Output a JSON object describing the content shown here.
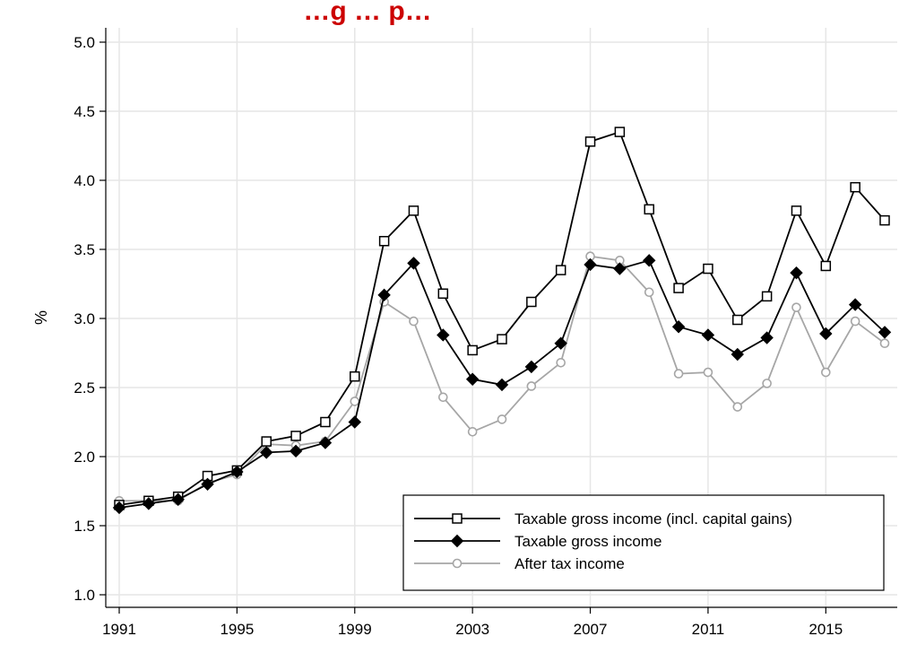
{
  "chart_data": {
    "type": "line",
    "title": "…g … p…",
    "xlabel": "",
    "ylabel": "%",
    "xlim": [
      1991,
      2017
    ],
    "ylim": [
      1.0,
      5.0
    ],
    "x_ticks": [
      1991,
      1995,
      1999,
      2003,
      2007,
      2011,
      2015
    ],
    "y_ticks": [
      "1.0",
      "1.5",
      "2.0",
      "2.5",
      "3.0",
      "3.5",
      "4.0",
      "4.5",
      "5.0"
    ],
    "grid": true,
    "legend_position": "bottom-right",
    "x": [
      1991,
      1992,
      1993,
      1994,
      1995,
      1996,
      1997,
      1998,
      1999,
      2000,
      2001,
      2002,
      2003,
      2004,
      2005,
      2006,
      2007,
      2008,
      2009,
      2010,
      2011,
      2012,
      2013,
      2014,
      2015,
      2016,
      2017
    ],
    "series": [
      {
        "name": "Taxable gross income (incl. capital gains)",
        "marker": "open-square",
        "color": "#000000",
        "values": [
          1.65,
          1.68,
          1.71,
          1.86,
          1.9,
          2.11,
          2.15,
          2.25,
          2.58,
          3.56,
          3.78,
          3.18,
          2.77,
          2.85,
          3.12,
          3.35,
          4.28,
          4.35,
          3.79,
          3.22,
          3.36,
          2.99,
          3.16,
          3.78,
          3.38,
          3.95,
          3.71
        ]
      },
      {
        "name": "Taxable gross income",
        "marker": "filled-diamond",
        "color": "#000000",
        "values": [
          1.63,
          1.66,
          1.69,
          1.8,
          1.89,
          2.03,
          2.04,
          2.1,
          2.25,
          3.17,
          3.4,
          2.88,
          2.56,
          2.52,
          2.65,
          2.82,
          3.39,
          3.36,
          3.42,
          2.94,
          2.88,
          2.74,
          2.86,
          3.33,
          2.89,
          3.1,
          2.9
        ]
      },
      {
        "name": "After tax income",
        "marker": "open-circle",
        "color": "#a6a6a6",
        "values": [
          1.68,
          1.68,
          1.68,
          1.81,
          1.87,
          2.09,
          2.08,
          2.11,
          2.4,
          3.12,
          2.98,
          2.43,
          2.18,
          2.27,
          2.51,
          2.68,
          3.45,
          3.42,
          3.19,
          2.6,
          2.61,
          2.36,
          2.53,
          3.08,
          2.61,
          2.98,
          2.82
        ]
      }
    ]
  },
  "colors": {
    "title": "#cc0000",
    "grid": "#e6e6e6",
    "axis": "#000000"
  }
}
